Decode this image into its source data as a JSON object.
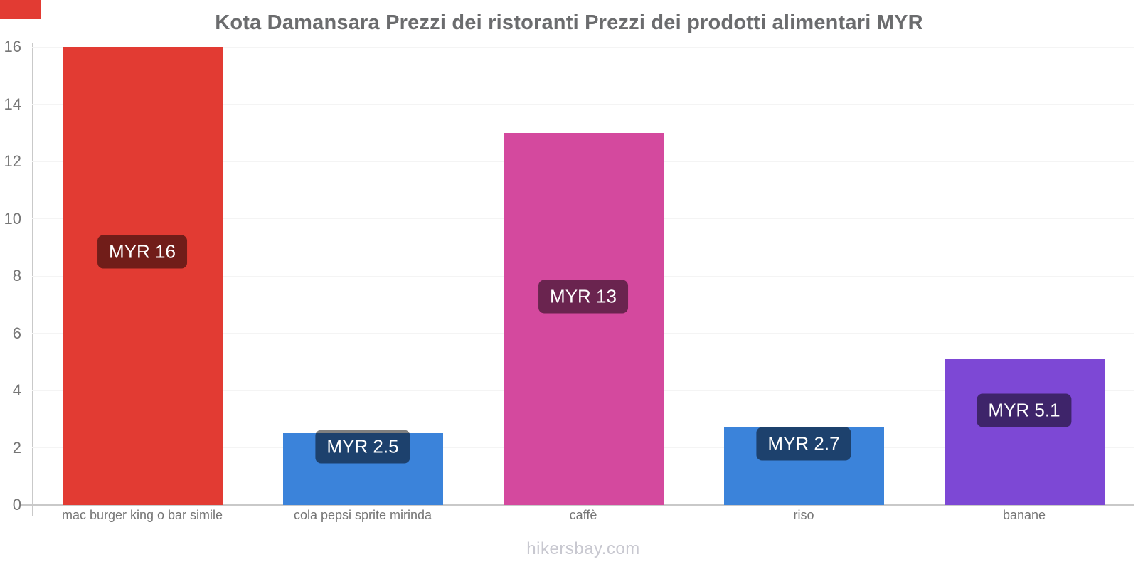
{
  "page": {
    "title": "Kota Damansara Prezzi dei ristoranti Prezzi dei prodotti alimentari MYR",
    "footer": "hikersbay.com",
    "currency": "MYR"
  },
  "colors": {
    "bar_red": "#e23b33",
    "bar_blue": "#3b83da",
    "bar_pink": "#d4499e",
    "bar_purple": "#7d48d5",
    "badge_overlay": "rgba(0,0,0,0.5)",
    "badge_text": "#ffffff",
    "axis_line": "#c9c9c9",
    "gridline": "#f4f4f4",
    "title_text": "#6b6c6e",
    "tick_text": "#767676",
    "category_text": "#757575",
    "footer_text": "#c8c8d0",
    "corner_mark": "#e23b33"
  },
  "chart_data": {
    "type": "bar",
    "title": "Kota Damansara Prezzi dei ristoranti Prezzi dei prodotti alimentari MYR",
    "categories": [
      "mac burger king o bar simile",
      "cola pepsi sprite mirinda",
      "caffè",
      "riso",
      "banane"
    ],
    "values": [
      16,
      2.5,
      13,
      2.7,
      5.1
    ],
    "value_labels": [
      "MYR 16",
      "MYR 2.5",
      "MYR 13",
      "MYR 2.7",
      "MYR 5.1"
    ],
    "bar_color_keys": [
      "bar_red",
      "bar_blue",
      "bar_pink",
      "bar_blue",
      "bar_purple"
    ],
    "xlabel": "",
    "ylabel": "",
    "ylim": [
      0,
      16
    ],
    "y_ticks": [
      0,
      2,
      4,
      6,
      8,
      10,
      12,
      14,
      16
    ],
    "grid": "faint-horizontal-lines",
    "legend": "none",
    "unit": "MYR"
  }
}
